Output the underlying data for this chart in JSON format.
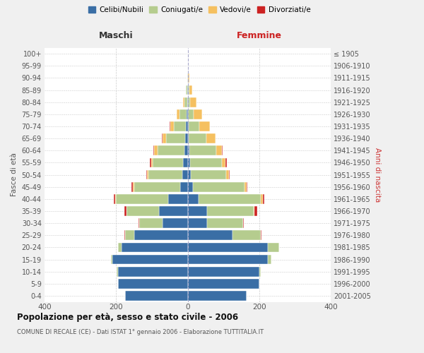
{
  "age_groups": [
    "0-4",
    "5-9",
    "10-14",
    "15-19",
    "20-24",
    "25-29",
    "30-34",
    "35-39",
    "40-44",
    "45-49",
    "50-54",
    "55-59",
    "60-64",
    "65-69",
    "70-74",
    "75-79",
    "80-84",
    "85-89",
    "90-94",
    "95-99",
    "100+"
  ],
  "birth_years": [
    "2001-2005",
    "1996-2000",
    "1991-1995",
    "1986-1990",
    "1981-1985",
    "1976-1980",
    "1971-1975",
    "1966-1970",
    "1961-1965",
    "1956-1960",
    "1951-1955",
    "1946-1950",
    "1941-1945",
    "1936-1940",
    "1931-1935",
    "1926-1930",
    "1921-1925",
    "1916-1920",
    "1911-1915",
    "1906-1910",
    "≤ 1905"
  ],
  "colors": {
    "celibe": "#3a6ea5",
    "coniugato": "#b5cc8e",
    "vedovo": "#f5c060",
    "divorziato": "#cc2222"
  },
  "maschi": {
    "celibe": [
      175,
      195,
      195,
      210,
      185,
      150,
      70,
      80,
      55,
      20,
      15,
      12,
      9,
      6,
      4,
      2,
      1,
      1,
      0,
      0,
      0
    ],
    "coniugato": [
      0,
      0,
      3,
      5,
      10,
      25,
      65,
      90,
      145,
      130,
      95,
      85,
      75,
      55,
      35,
      20,
      8,
      3,
      1,
      0,
      0
    ],
    "vedovo": [
      0,
      0,
      0,
      0,
      0,
      0,
      0,
      1,
      2,
      3,
      3,
      5,
      10,
      10,
      10,
      8,
      4,
      1,
      0,
      0,
      0
    ],
    "divorziato": [
      0,
      0,
      0,
      0,
      0,
      1,
      2,
      5,
      4,
      5,
      3,
      3,
      2,
      1,
      1,
      0,
      0,
      0,
      0,
      0,
      0
    ]
  },
  "femmine": {
    "nubile": [
      165,
      200,
      200,
      225,
      225,
      125,
      55,
      55,
      30,
      14,
      8,
      6,
      5,
      3,
      2,
      1,
      1,
      1,
      0,
      0,
      0
    ],
    "coniugata": [
      0,
      0,
      4,
      10,
      30,
      80,
      100,
      130,
      175,
      145,
      100,
      90,
      75,
      50,
      30,
      15,
      6,
      3,
      1,
      0,
      0
    ],
    "vedova": [
      0,
      0,
      0,
      0,
      0,
      0,
      1,
      2,
      5,
      6,
      8,
      10,
      15,
      25,
      30,
      25,
      18,
      8,
      3,
      1,
      0
    ],
    "divorziata": [
      0,
      0,
      0,
      0,
      0,
      1,
      2,
      8,
      5,
      2,
      2,
      4,
      3,
      1,
      1,
      0,
      0,
      0,
      0,
      0,
      0
    ]
  },
  "title": "Popolazione per età, sesso e stato civile - 2006",
  "subtitle": "COMUNE DI RECALE (CE) - Dati ISTAT 1° gennaio 2006 - Elaborazione TUTTITALIA.IT",
  "xlabel_maschi": "Maschi",
  "xlabel_femmine": "Femmine",
  "ylabel_left": "Fasce di età",
  "ylabel_right": "Anni di nascita",
  "xlim": 400,
  "legend_labels": [
    "Celibi/Nubili",
    "Coniugati/e",
    "Vedovi/e",
    "Divorziati/e"
  ],
  "bg_color": "#f0f0f0",
  "plot_bg": "#ffffff"
}
